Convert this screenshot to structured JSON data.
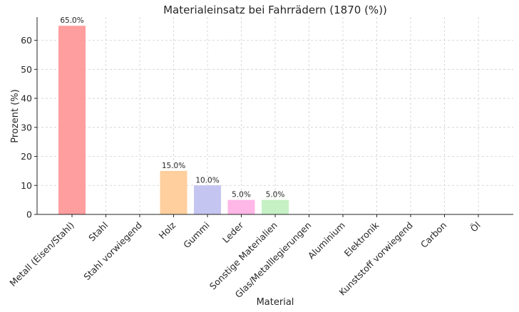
{
  "chart_data": {
    "type": "bar",
    "title": "Materialeinsatz bei Fahrrädern (1870 (%))",
    "xlabel": "Material",
    "ylabel": "Prozent (%)",
    "ylim": [
      0,
      68
    ],
    "yticks": [
      0,
      10,
      20,
      30,
      40,
      50,
      60
    ],
    "grid": true,
    "categories": [
      "Metall (Eisen/Stahl)",
      "Stahl",
      "Stahl vorwiegend",
      "Holz",
      "Gummi",
      "Leder",
      "Sonstige Materialien",
      "Glas/Metalllegierungen",
      "Aluminium",
      "Elektronik",
      "Kunststoff vorwiegend",
      "Carbon",
      "Öl"
    ],
    "values": [
      65,
      0,
      0,
      15,
      10,
      5,
      5,
      0,
      0,
      0,
      0,
      0,
      0
    ],
    "data_labels": [
      "65.0%",
      "",
      "",
      "15.0%",
      "10.0%",
      "5.0%",
      "5.0%",
      "",
      "",
      "",
      "",
      "",
      ""
    ],
    "colors": [
      "#ff9999",
      "#66b3ff",
      "#99ff99",
      "#ffcc99",
      "#c2c2f0",
      "#ffb3e6",
      "#c2f0c2",
      "#ff6666",
      "#c2c2f0",
      "#ffb3e6",
      "#c4e17f",
      "#76d7c4",
      "#f7dc6f"
    ]
  }
}
